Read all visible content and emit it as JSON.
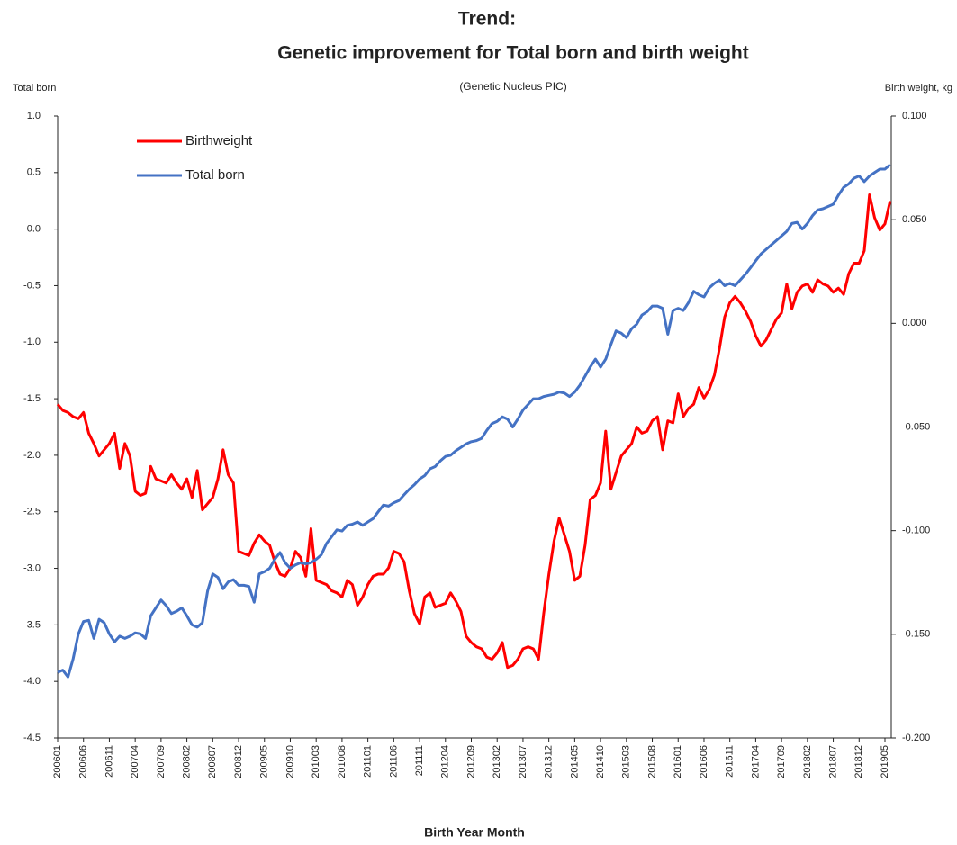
{
  "chart_data": {
    "type": "line",
    "title": [
      "Trend:",
      "Genetic improvement for Total born and birth weight"
    ],
    "subtitle": "(Genetic Nucleus PIC)",
    "y_label": "Total born",
    "y2_label": "Birth weight, kg",
    "x_label": "Birth Year Month",
    "legend": "upper left",
    "grid": false,
    "categories": [
      "200601",
      null,
      null,
      null,
      null,
      "200606",
      null,
      null,
      null,
      null,
      "200611",
      null,
      null,
      null,
      null,
      "200704",
      null,
      null,
      null,
      null,
      "200709",
      null,
      null,
      null,
      null,
      "200802",
      null,
      null,
      null,
      null,
      "200807",
      null,
      null,
      null,
      null,
      "200812",
      null,
      null,
      null,
      null,
      "200905",
      null,
      null,
      null,
      null,
      "200910",
      null,
      null,
      null,
      null,
      "201003",
      null,
      null,
      null,
      null,
      "201008",
      null,
      null,
      null,
      null,
      "201101",
      null,
      null,
      null,
      null,
      "201106",
      null,
      null,
      null,
      null,
      "201111",
      null,
      null,
      null,
      null,
      "201204",
      null,
      null,
      null,
      null,
      "201209",
      null,
      null,
      null,
      null,
      "201302",
      null,
      null,
      null,
      null,
      "201307",
      null,
      null,
      null,
      null,
      "201312",
      null,
      null,
      null,
      null,
      "201405",
      null,
      null,
      null,
      null,
      "201410",
      null,
      null,
      null,
      null,
      "201503",
      null,
      null,
      null,
      null,
      "201508",
      null,
      null,
      null,
      null,
      "201601",
      null,
      null,
      null,
      null,
      "201606",
      null,
      null,
      null,
      null,
      "201611",
      null,
      null,
      null,
      null,
      "201704",
      null,
      null,
      null,
      null,
      "201709",
      null,
      null,
      null,
      null,
      "201802",
      null,
      null,
      null,
      null,
      "201807",
      null,
      null,
      null,
      null,
      "201812",
      null,
      null,
      null,
      null,
      "201905",
      null
    ],
    "series": [
      {
        "name": "Birthweight",
        "color": "#ff0000",
        "axis": "y2",
        "values": [
          -0.039,
          -0.042,
          -0.043,
          -0.045,
          -0.046,
          -0.043,
          -0.053,
          -0.058,
          -0.064,
          -0.061,
          -0.058,
          -0.053,
          -0.07,
          -0.058,
          -0.064,
          -0.081,
          -0.083,
          -0.082,
          -0.069,
          -0.075,
          -0.076,
          -0.077,
          -0.073,
          -0.077,
          -0.08,
          -0.075,
          -0.084,
          -0.071,
          -0.09,
          -0.087,
          -0.084,
          -0.075,
          -0.061,
          -0.073,
          -0.077,
          -0.11,
          -0.111,
          -0.112,
          -0.106,
          -0.102,
          -0.105,
          -0.107,
          -0.115,
          -0.121,
          -0.122,
          -0.118,
          -0.11,
          -0.113,
          -0.122,
          -0.099,
          -0.124,
          -0.125,
          -0.126,
          -0.129,
          -0.13,
          -0.132,
          -0.124,
          -0.126,
          -0.136,
          -0.132,
          -0.126,
          -0.122,
          -0.121,
          -0.121,
          -0.118,
          -0.11,
          -0.111,
          -0.115,
          -0.129,
          -0.14,
          -0.145,
          -0.132,
          -0.13,
          -0.137,
          -0.136,
          -0.135,
          -0.13,
          -0.134,
          -0.139,
          -0.151,
          -0.154,
          -0.156,
          -0.157,
          -0.161,
          -0.162,
          -0.159,
          -0.154,
          -0.166,
          -0.165,
          -0.162,
          -0.157,
          -0.156,
          -0.157,
          -0.162,
          -0.14,
          -0.121,
          -0.105,
          -0.094,
          -0.102,
          -0.11,
          -0.124,
          -0.122,
          -0.107,
          -0.085,
          -0.083,
          -0.077,
          -0.052,
          -0.08,
          -0.072,
          -0.064,
          -0.061,
          -0.058,
          -0.05,
          -0.053,
          -0.052,
          -0.047,
          -0.045,
          -0.061,
          -0.047,
          -0.048,
          -0.034,
          -0.045,
          -0.041,
          -0.039,
          -0.031,
          -0.036,
          -0.032,
          -0.025,
          -0.012,
          0.003,
          0.01,
          0.013,
          0.01,
          0.006,
          0.001,
          -0.006,
          -0.011,
          -0.008,
          -0.003,
          0.002,
          0.005,
          0.019,
          0.007,
          0.015,
          0.018,
          0.019,
          0.015,
          0.021,
          0.019,
          0.018,
          0.015,
          0.017,
          0.014,
          0.024,
          0.029,
          0.029,
          0.035,
          0.062,
          0.051,
          0.045,
          0.048,
          0.059
        ]
      },
      {
        "name": "Total born",
        "color": "#4472c4",
        "values": [
          -3.92,
          -3.9,
          -3.96,
          -3.8,
          -3.58,
          -3.47,
          -3.46,
          -3.62,
          -3.45,
          -3.48,
          -3.58,
          -3.65,
          -3.6,
          -3.62,
          -3.6,
          -3.57,
          -3.58,
          -3.62,
          -3.42,
          -3.35,
          -3.28,
          -3.33,
          -3.4,
          -3.38,
          -3.35,
          -3.42,
          -3.5,
          -3.52,
          -3.48,
          -3.2,
          -3.05,
          -3.08,
          -3.18,
          -3.12,
          -3.1,
          -3.15,
          -3.15,
          -3.16,
          -3.3,
          -3.05,
          -3.03,
          -3.0,
          -2.92,
          -2.86,
          -2.95,
          -3.0,
          -2.97,
          -2.95,
          -2.96,
          -2.95,
          -2.92,
          -2.88,
          -2.78,
          -2.72,
          -2.66,
          -2.67,
          -2.62,
          -2.61,
          -2.59,
          -2.62,
          -2.59,
          -2.56,
          -2.5,
          -2.44,
          -2.45,
          -2.42,
          -2.4,
          -2.35,
          -2.3,
          -2.26,
          -2.21,
          -2.18,
          -2.12,
          -2.1,
          -2.05,
          -2.01,
          -2.0,
          -1.96,
          -1.93,
          -1.9,
          -1.88,
          -1.87,
          -1.85,
          -1.78,
          -1.72,
          -1.7,
          -1.66,
          -1.68,
          -1.75,
          -1.68,
          -1.6,
          -1.55,
          -1.5,
          -1.5,
          -1.48,
          -1.47,
          -1.46,
          -1.44,
          -1.45,
          -1.48,
          -1.44,
          -1.38,
          -1.3,
          -1.22,
          -1.15,
          -1.22,
          -1.15,
          -1.02,
          -0.9,
          -0.92,
          -0.96,
          -0.88,
          -0.84,
          -0.76,
          -0.73,
          -0.68,
          -0.68,
          -0.7,
          -0.93,
          -0.72,
          -0.7,
          -0.72,
          -0.65,
          -0.55,
          -0.58,
          -0.6,
          -0.52,
          -0.48,
          -0.45,
          -0.5,
          -0.48,
          -0.5,
          -0.45,
          -0.4,
          -0.34,
          -0.28,
          -0.22,
          -0.18,
          -0.14,
          -0.1,
          -0.06,
          -0.02,
          0.05,
          0.06,
          0.0,
          0.05,
          0.12,
          0.17,
          0.18,
          0.2,
          0.22,
          0.3,
          0.37,
          0.4,
          0.45,
          0.47,
          0.42,
          0.47,
          0.5,
          0.53,
          0.53,
          0.57
        ]
      }
    ],
    "ylim": [
      -4.5,
      1
    ],
    "yticks": [
      {
        "value": 1,
        "label": "1.0"
      },
      0.5,
      {
        "value": 0,
        "label": "0.0"
      },
      -0.5,
      {
        "value": -1,
        "label": "-1.0"
      },
      -1.5,
      {
        "value": -2,
        "label": "-2.0"
      },
      -2.5,
      {
        "value": -3,
        "label": "-3.0"
      },
      -3.5,
      {
        "value": -4,
        "label": "-4.0"
      },
      -4.5
    ],
    "y2lim": [
      -0.2,
      0.1
    ],
    "y2ticks": [
      {
        "value": 0.1,
        "label": "0.100"
      },
      {
        "value": 0.05,
        "label": "0.050"
      },
      {
        "value": 0,
        "label": "0.000"
      },
      {
        "value": -0.05,
        "label": "-0.050"
      },
      {
        "value": -0.1,
        "label": "-0.100"
      },
      {
        "value": -0.15,
        "label": "-0.150"
      },
      {
        "value": -0.2,
        "label": "-0.200"
      }
    ]
  }
}
